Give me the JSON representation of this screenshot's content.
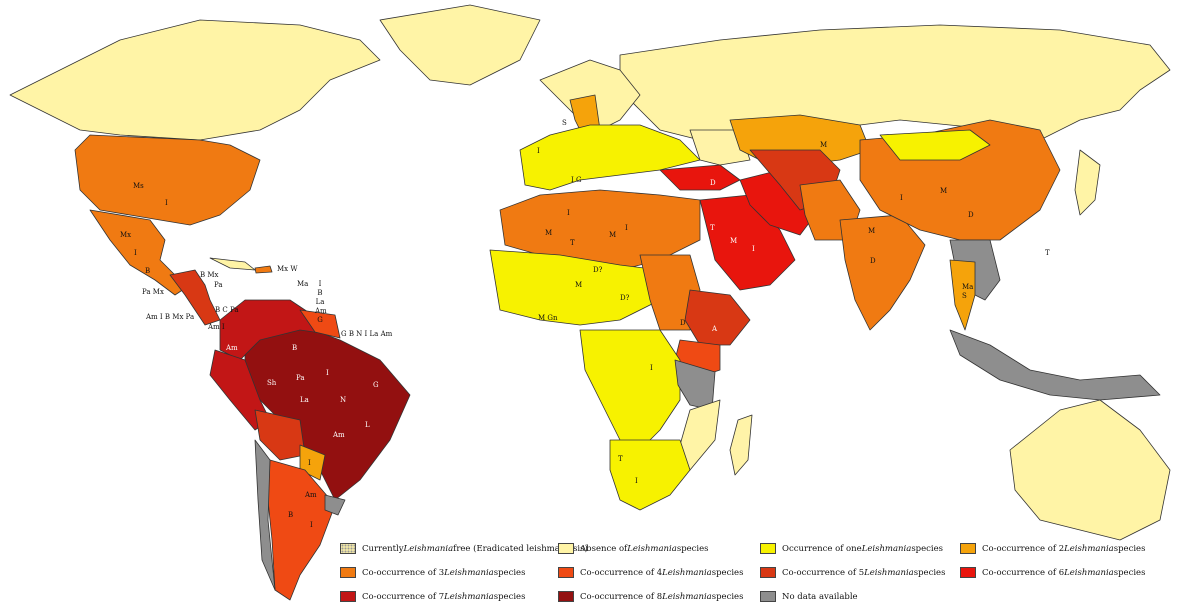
{
  "legend": [
    {
      "key": "free",
      "before": "Currently ",
      "italic": "Leishmania",
      "after": " free (Eradicated leishmaniasis)",
      "color": "#fff3a8"
    },
    {
      "key": "absent",
      "before": "Absence of ",
      "italic": "Leishmania",
      "after": " species",
      "color": "#fff4a6"
    },
    {
      "key": "one",
      "before": "Occurrence of one ",
      "italic": "Leishmania",
      "after": " species",
      "color": "#f7f200"
    },
    {
      "key": "two",
      "before": "Co-occurrence of 2 ",
      "italic": "Leishmania",
      "after": " species",
      "color": "#f5a30b"
    },
    {
      "key": "three",
      "before": "Co-occurrence of 3 ",
      "italic": "Leishmania",
      "after": " species",
      "color": "#f07a12"
    },
    {
      "key": "four",
      "before": "Co-occurrence of 4 ",
      "italic": "Leishmania",
      "after": " species",
      "color": "#ef4a14"
    },
    {
      "key": "five",
      "before": "Co-occurrence of 5 ",
      "italic": "Leishmania",
      "after": " species",
      "color": "#d83814"
    },
    {
      "key": "six",
      "before": "Co-occurrence of 6 ",
      "italic": "Leishmania",
      "after": " species",
      "color": "#e8150d"
    },
    {
      "key": "seven",
      "before": "Co-occurrence of 7 ",
      "italic": "Leishmania",
      "after": " species",
      "color": "#c21616"
    },
    {
      "key": "eight",
      "before": "Co-occurrence of 8 ",
      "italic": "Leishmania",
      "after": " species",
      "color": "#931010"
    },
    {
      "key": "nodata",
      "before": "No data available",
      "italic": "",
      "after": "",
      "color": "#8e8e8e"
    }
  ],
  "labels": {
    "usa_ms": "Ms",
    "usa_i": "I",
    "mexico_mx": "Mx",
    "mexico_i": "I",
    "mexico_b": "B",
    "carib_mx_w": "Mx W",
    "carib_bmx": "B Mx",
    "carib_pa": "Pa",
    "carib_pa_mx": "Pa Mx",
    "carib_ma": "Ma",
    "carib_i_b_la_am_g": "I B La Am G",
    "ca_am_i_b_mx_pa": "Am I B Mx Pa",
    "ca_b_c_pa": "B C Pa",
    "ca_am_i": "Am I",
    "guiana_gbnilaam": "G B N I La Am",
    "sa_am_colombia": "Am",
    "sa_b": "B",
    "sa_i": "I",
    "sa_pa": "Pa",
    "sa_g": "G",
    "sa_la": "La",
    "sa_n": "N",
    "sa_am_brazil": "Am",
    "sa_l": "L",
    "sa_sh": "Sh",
    "sa_i_arg": "I",
    "sa_am_arg": "Am",
    "sa_b_arg": "B",
    "sa_i_para": "I",
    "eu_s": "S",
    "eu_i": "I",
    "eu_ig": "I G",
    "eu_m": "M",
    "af_m1": "M",
    "af_i1": "I",
    "af_t1": "T",
    "af_m2": "M",
    "af_i2": "I",
    "af_d_q": "D?",
    "af_m3": "M",
    "af_d_q2": "D?",
    "af_i3": "I",
    "af_m_gn": "M Gn",
    "af_d": "D",
    "af_t": "T",
    "af_i_sa": "I",
    "me_m": "M",
    "me_i": "I",
    "me_t": "T",
    "me_d": "D",
    "me_a": "A",
    "as_m": "M",
    "as_i": "I",
    "as_d": "D",
    "as_t": "T",
    "as_ma_s": "Ma S",
    "india_m": "M",
    "india_d": "D"
  }
}
